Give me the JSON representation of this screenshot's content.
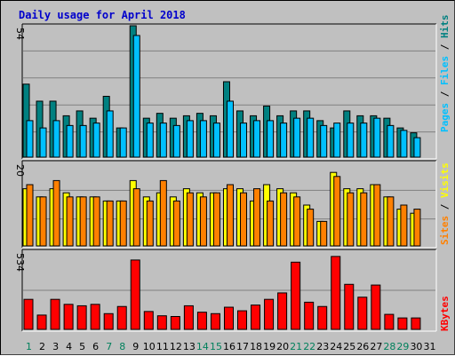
{
  "chart_data": {
    "type": "bar",
    "title": "Daily usage for April 2018",
    "categories": [
      "1",
      "2",
      "3",
      "4",
      "5",
      "6",
      "7",
      "8",
      "9",
      "10",
      "11",
      "12",
      "13",
      "14",
      "15",
      "16",
      "17",
      "18",
      "19",
      "20",
      "21",
      "22",
      "23",
      "24",
      "25",
      "26",
      "27",
      "28",
      "29",
      "30",
      "31"
    ],
    "weekend_days": [
      "1",
      "7",
      "8",
      "14",
      "15",
      "21",
      "22",
      "28",
      "29"
    ],
    "colors": {
      "title": "#0000cc",
      "pages": "#00806b",
      "files": "#00c0ff",
      "hits": "#008080",
      "visits": "#ffff00",
      "sites": "#ff8000",
      "kbytes": "#ff0000",
      "weekday_label": "#000000",
      "weekend_label": "#00805c",
      "plot_bg": "#c0c0c0",
      "grid": "#808080"
    },
    "panels": [
      {
        "id": "top",
        "ymax_label": "54",
        "ymax": 54,
        "legend": [
          "Pages",
          "Files",
          "Hits"
        ],
        "series": [
          {
            "name": "Hits",
            "values": [
              30,
              23,
              23,
              17,
              19,
              16,
              25,
              12,
              54,
              16,
              18,
              16,
              17,
              18,
              17,
              31,
              19,
              17,
              21,
              17,
              19,
              19,
              15,
              12,
              19,
              17,
              17,
              16,
              12,
              10,
              0
            ]
          },
          {
            "name": "Files",
            "values": [
              15,
              12,
              15,
              13,
              13,
              14,
              19,
              12,
              50,
              14,
              14,
              13,
              15,
              15,
              14,
              23,
              14,
              15,
              15,
              14,
              16,
              16,
              13,
              14,
              14,
              14,
              16,
              13,
              11,
              8,
              0
            ]
          }
        ]
      },
      {
        "id": "middle",
        "ymax_label": "20",
        "ymax": 20,
        "legend": [
          "Sites",
          "Visits"
        ],
        "series": [
          {
            "name": "Visits",
            "values": [
              14,
              12,
              14,
              13,
              12,
              12,
              11,
              11,
              16,
              12,
              13,
              12,
              14,
              13,
              13,
              14,
              14,
              11,
              15,
              14,
              13,
              10,
              6,
              18,
              14,
              14,
              15,
              12,
              9,
              8,
              0
            ]
          },
          {
            "name": "Sites",
            "values": [
              15,
              12,
              16,
              12,
              12,
              12,
              11,
              11,
              14,
              11,
              16,
              11,
              13,
              12,
              13,
              15,
              13,
              14,
              11,
              13,
              12,
              9,
              6,
              17,
              13,
              13,
              15,
              12,
              10,
              9,
              0
            ]
          }
        ]
      },
      {
        "id": "bottom",
        "ymax_label": "534",
        "ymax": 534,
        "legend": [
          "KBytes"
        ],
        "series": [
          {
            "name": "KBytes",
            "values": [
              210,
              100,
              210,
              175,
              165,
              175,
              110,
              160,
              485,
              125,
              95,
              90,
              165,
              120,
              110,
              155,
              130,
              170,
              210,
              255,
              470,
              190,
              160,
              510,
              315,
              225,
              310,
              105,
              80,
              80,
              0
            ]
          }
        ]
      }
    ]
  }
}
